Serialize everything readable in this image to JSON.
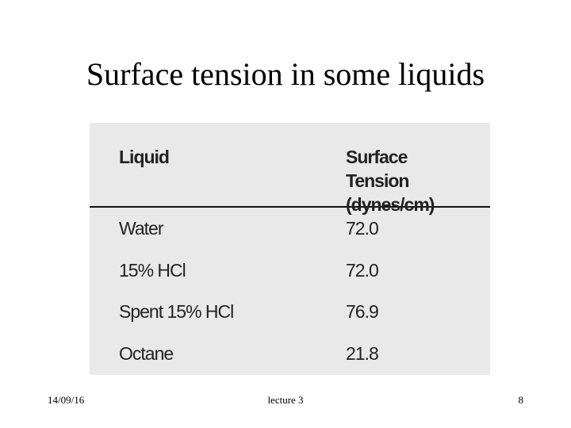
{
  "title": "Surface tension in some liquids",
  "table": {
    "header": [
      "Liquid",
      "Surface Tension (dynes/cm)"
    ],
    "rows": [
      [
        "Water",
        "72.0"
      ],
      [
        "15% HCl",
        "72.0"
      ],
      [
        "Spent 15% HCl",
        "76.9"
      ],
      [
        "Octane",
        "21.8"
      ]
    ]
  },
  "footer": {
    "date": "14/09/16",
    "label": "lecture 3",
    "page": "8"
  }
}
